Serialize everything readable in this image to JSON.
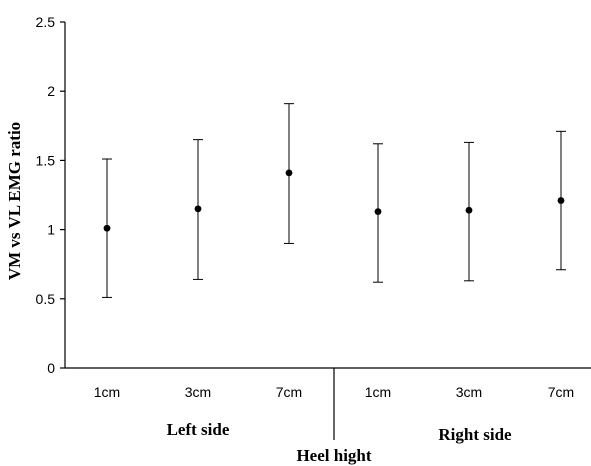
{
  "chart_data": {
    "type": "scatter",
    "title": "",
    "xlabel": "Heel hight",
    "ylabel": "VM vs VL EMG ratio",
    "ylim": [
      0,
      2.5
    ],
    "yticks": [
      "0",
      "0.5",
      "1",
      "1.5",
      "2",
      "2.5"
    ],
    "ytick_values": [
      0,
      0.5,
      1,
      1.5,
      2,
      2.5
    ],
    "categories": [
      "1cm",
      "3cm",
      "7cm",
      "1cm",
      "3cm",
      "7cm"
    ],
    "groups": [
      {
        "label": "Left side"
      },
      {
        "label": "Right side"
      }
    ],
    "values": [
      1.01,
      1.15,
      1.41,
      1.13,
      1.14,
      1.21
    ],
    "error_low": [
      0.51,
      0.64,
      0.9,
      0.62,
      0.63,
      0.71
    ],
    "error_high": [
      1.51,
      1.65,
      1.91,
      1.62,
      1.63,
      1.71
    ],
    "grid": false,
    "legend": "none"
  }
}
